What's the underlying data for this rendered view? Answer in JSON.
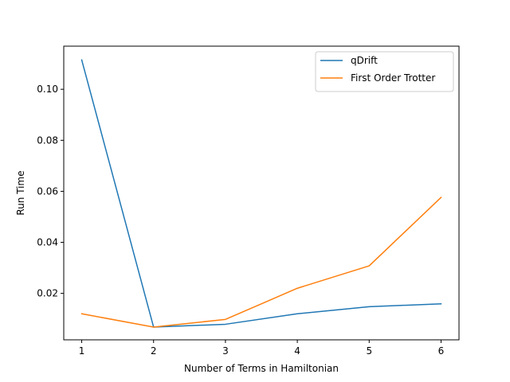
{
  "chart_data": {
    "type": "line",
    "title": "",
    "xlabel": "Number of Terms in Hamiltonian",
    "ylabel": "Run Time",
    "x": [
      1,
      2,
      3,
      4,
      5,
      6
    ],
    "xticks": [
      1,
      2,
      3,
      4,
      5,
      6
    ],
    "yticks": [
      0.02,
      0.04,
      0.06,
      0.08,
      0.1
    ],
    "ytick_labels": [
      "0.02",
      "0.04",
      "0.06",
      "0.08",
      "0.10"
    ],
    "xlim": [
      0.75,
      6.25
    ],
    "ylim": [
      0.0018,
      0.1169
    ],
    "grid": false,
    "legend_position": "top-right",
    "series": [
      {
        "name": "qDrift",
        "color": "#1f77b4",
        "values": [
          0.1115,
          0.0068,
          0.0079,
          0.012,
          0.0148,
          0.0159
        ]
      },
      {
        "name": "First Order Trotter",
        "color": "#ff7f0e",
        "values": [
          0.012,
          0.0068,
          0.0098,
          0.022,
          0.0308,
          0.0576
        ]
      }
    ]
  }
}
